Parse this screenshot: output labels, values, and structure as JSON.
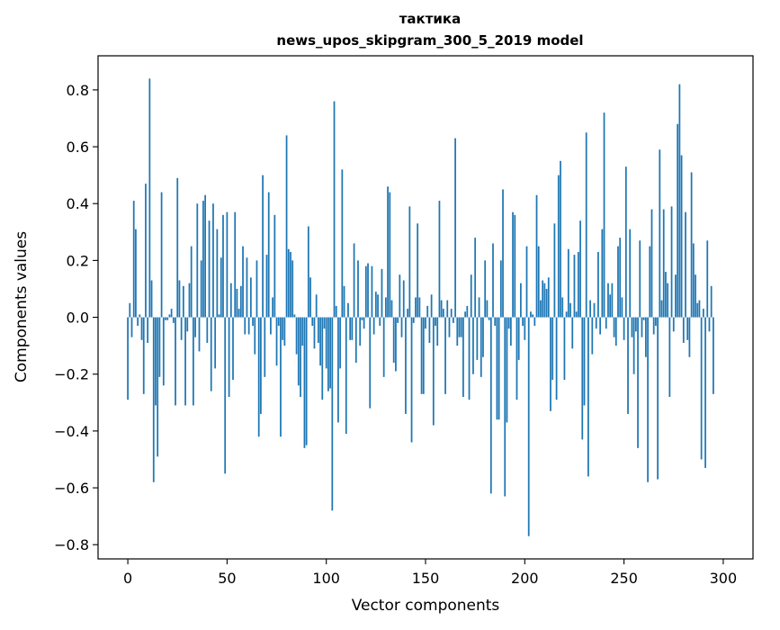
{
  "chart_data": {
    "type": "bar",
    "title_line1": "тактика",
    "title_line2": "news_upos_skipgram_300_5_2019 model",
    "xlabel": "Vector components",
    "ylabel": "Components values",
    "xlim": [
      -15,
      315
    ],
    "ylim": [
      -0.85,
      0.92
    ],
    "xticks": [
      0,
      50,
      100,
      150,
      200,
      250,
      300
    ],
    "yticks": [
      -0.8,
      -0.6,
      -0.4,
      -0.2,
      0.0,
      0.2,
      0.4,
      0.6,
      0.8
    ],
    "xtick_labels": [
      "0",
      "50",
      "100",
      "150",
      "200",
      "250",
      "300"
    ],
    "ytick_labels": [
      "−0.8",
      "−0.6",
      "−0.4",
      "−0.2",
      "0.0",
      "0.2",
      "0.4",
      "0.6",
      "0.8"
    ],
    "bar_color": "#1f77b4",
    "grid": false,
    "values": [
      -0.29,
      0.05,
      -0.07,
      0.41,
      0.31,
      -0.03,
      0.01,
      -0.08,
      -0.27,
      0.47,
      -0.09,
      0.84,
      0.13,
      -0.58,
      -0.31,
      -0.49,
      -0.21,
      0.44,
      -0.24,
      -0.01,
      -0.01,
      0.01,
      0.03,
      -0.02,
      -0.31,
      0.49,
      0.13,
      -0.08,
      0.11,
      -0.31,
      -0.05,
      0.12,
      0.25,
      -0.31,
      -0.07,
      0.4,
      -0.12,
      0.2,
      0.41,
      0.43,
      -0.09,
      0.34,
      -0.26,
      0.4,
      -0.18,
      0.31,
      0.01,
      0.21,
      0.36,
      -0.55,
      0.37,
      -0.28,
      0.12,
      -0.22,
      0.37,
      0.1,
      0.03,
      0.11,
      0.25,
      -0.06,
      0.21,
      -0.06,
      0.14,
      -0.03,
      -0.13,
      0.2,
      -0.42,
      -0.34,
      0.5,
      -0.21,
      0.22,
      0.44,
      -0.06,
      0.07,
      0.36,
      -0.17,
      -0.03,
      -0.42,
      -0.08,
      -0.1,
      0.64,
      0.24,
      0.23,
      0.2,
      0.01,
      -0.13,
      -0.24,
      -0.28,
      -0.1,
      -0.46,
      -0.45,
      0.32,
      0.14,
      -0.03,
      -0.11,
      0.08,
      -0.09,
      -0.17,
      -0.29,
      -0.04,
      -0.18,
      -0.26,
      -0.25,
      -0.68,
      0.76,
      0.04,
      -0.37,
      -0.18,
      0.52,
      0.11,
      -0.41,
      0.05,
      -0.08,
      -0.08,
      0.26,
      -0.16,
      0.2,
      -0.1,
      -0.01,
      -0.04,
      0.18,
      0.19,
      -0.32,
      0.18,
      -0.06,
      0.09,
      0.08,
      -0.03,
      0.17,
      -0.21,
      0.07,
      0.46,
      0.44,
      0.06,
      -0.16,
      -0.19,
      -0.02,
      0.15,
      -0.07,
      0.13,
      -0.34,
      0.03,
      0.39,
      -0.44,
      -0.02,
      0.07,
      0.33,
      0.07,
      -0.27,
      -0.27,
      -0.04,
      0.04,
      -0.09,
      0.08,
      -0.38,
      -0.03,
      -0.1,
      0.41,
      0.06,
      0.03,
      -0.27,
      0.06,
      -0.07,
      0.03,
      -0.02,
      0.63,
      -0.1,
      -0.07,
      -0.07,
      -0.28,
      0.02,
      0.04,
      -0.29,
      0.15,
      -0.2,
      0.28,
      -0.15,
      0.07,
      -0.21,
      -0.14,
      0.2,
      0.06,
      -0.01,
      -0.62,
      0.26,
      -0.03,
      -0.36,
      -0.36,
      0.2,
      0.45,
      -0.63,
      -0.37,
      -0.04,
      -0.1,
      0.37,
      0.36,
      -0.29,
      -0.15,
      0.12,
      -0.03,
      -0.08,
      0.25,
      -0.77,
      0.02,
      0.01,
      -0.03,
      0.43,
      0.25,
      0.06,
      0.13,
      0.12,
      0.1,
      0.14,
      -0.33,
      -0.22,
      0.33,
      -0.29,
      0.5,
      0.55,
      0.07,
      -0.22,
      0.02,
      0.24,
      0.05,
      -0.11,
      0.22,
      0.02,
      0.23,
      0.34,
      -0.43,
      -0.31,
      0.65,
      -0.56,
      0.06,
      -0.13,
      0.05,
      -0.04,
      0.23,
      -0.06,
      0.31,
      0.72,
      -0.04,
      0.12,
      0.08,
      0.12,
      -0.07,
      -0.1,
      0.25,
      0.28,
      0.07,
      -0.08,
      0.53,
      -0.34,
      0.31,
      -0.07,
      -0.2,
      -0.05,
      -0.46,
      0.27,
      -0.07,
      -0.01,
      -0.14,
      -0.58,
      0.25,
      0.38,
      -0.06,
      -0.03,
      -0.57,
      0.59,
      0.06,
      0.38,
      0.16,
      0.12,
      -0.28,
      0.39,
      -0.05,
      0.15,
      0.68,
      0.82,
      0.57,
      -0.09,
      0.37,
      -0.08,
      -0.14,
      0.51,
      0.26,
      0.15,
      0.05,
      0.06,
      -0.5,
      0.03,
      -0.53,
      0.27,
      -0.05,
      0.11,
      -0.27
    ]
  }
}
